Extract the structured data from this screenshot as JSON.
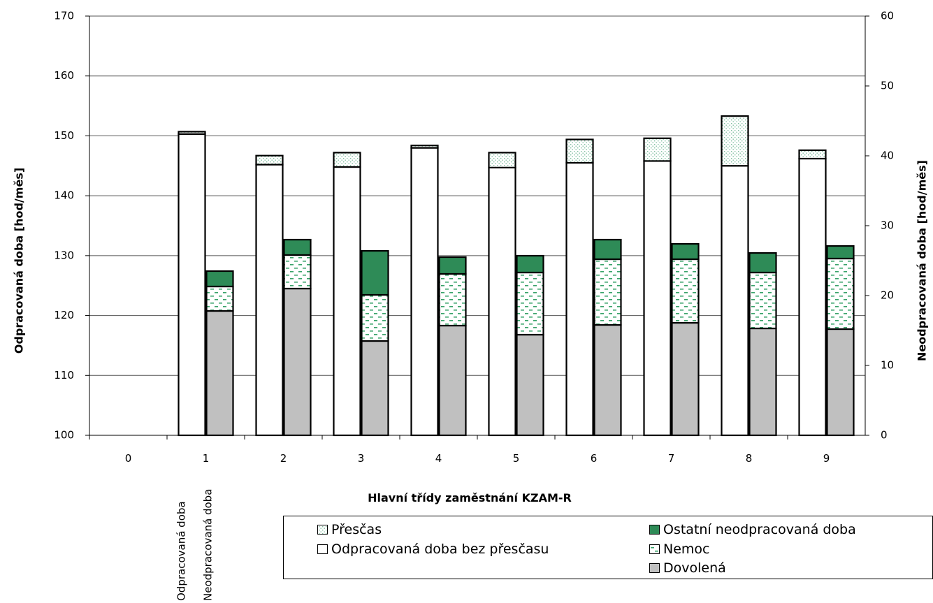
{
  "chart_data": {
    "type": "bar",
    "stacked": true,
    "xlabel": "Hlavní třídy zaměstnání KZAM-R",
    "ylabel_left": "Odpracovaná doba  [hod/měs]",
    "ylabel_right": "Neodpracovaná doba  [hod/měs]",
    "ylim_left": [
      100,
      170
    ],
    "ylim_right": [
      0,
      60
    ],
    "yticks_left": [
      100,
      110,
      120,
      130,
      140,
      150,
      160,
      170
    ],
    "yticks_right": [
      0,
      10,
      20,
      30,
      40,
      50,
      60
    ],
    "categories": [
      "0",
      "1",
      "2",
      "3",
      "4",
      "5",
      "6",
      "7",
      "8",
      "9"
    ],
    "bar_labels": [
      "Odpracovaná doba",
      "Neodpracovaná doba"
    ],
    "grid": true,
    "legend_position": "bottom",
    "worked": {
      "axis": "left",
      "series": [
        {
          "name": "Odpracovaná doba bez přesčasu",
          "values": [
            null,
            150.3,
            145.2,
            144.8,
            148.0,
            144.7,
            145.5,
            145.8,
            145.0,
            146.2
          ]
        },
        {
          "name": "Přesčas",
          "values": [
            null,
            0.4,
            1.5,
            2.4,
            0.4,
            2.5,
            3.9,
            3.8,
            8.3,
            1.4
          ]
        }
      ]
    },
    "not_worked": {
      "axis": "right",
      "series": [
        {
          "name": "Dovolená",
          "values": [
            null,
            17.8,
            21.0,
            13.5,
            15.7,
            14.4,
            15.8,
            16.1,
            15.3,
            15.2
          ]
        },
        {
          "name": "Nemoc",
          "values": [
            null,
            3.5,
            4.8,
            6.6,
            7.4,
            8.9,
            9.4,
            9.1,
            8.0,
            10.1
          ]
        },
        {
          "name": "Ostatní neodpracovaná doba",
          "values": [
            null,
            2.2,
            2.2,
            6.3,
            2.4,
            2.4,
            2.8,
            2.2,
            2.8,
            1.8
          ]
        }
      ]
    }
  },
  "legend": [
    {
      "name": "Přesčas",
      "swatch": "dots"
    },
    {
      "name": "Odpracovaná doba bez přesčasu",
      "swatch": "white"
    },
    {
      "name": "Ostatní neodpracovaná doba",
      "swatch": "green"
    },
    {
      "name": "Nemoc",
      "swatch": "dash"
    },
    {
      "name": "Dovolená",
      "swatch": "gray"
    }
  ],
  "colors": {
    "green": "#2e8b57",
    "gray": "#c0c0c0",
    "dash": "#3aa36a",
    "dots": "#7fbf9f",
    "white": "#ffffff"
  }
}
